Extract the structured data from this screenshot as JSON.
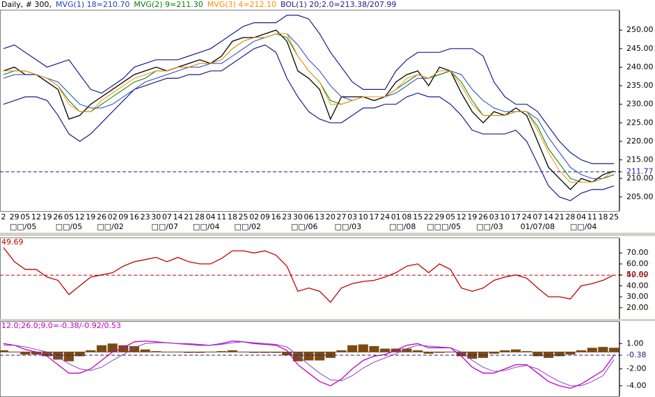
{
  "chart_data": [
    {
      "type": "line",
      "title": "Daily, # 300,",
      "categories": [
        "2",
        "29",
        "05",
        "12",
        "19",
        "26",
        "05",
        "12",
        "19",
        "26",
        "02",
        "09",
        "16",
        "23",
        "30",
        "07",
        "14",
        "21",
        "28",
        "04",
        "11",
        "18",
        "25",
        "02",
        "09",
        "16",
        "23",
        "30",
        "06",
        "13",
        "20",
        "27",
        "03",
        "10",
        "17",
        "24",
        "01",
        "08",
        "15",
        "22",
        "29",
        "05",
        "12",
        "19",
        "26",
        "03",
        "10",
        "17",
        "24",
        "07",
        "14",
        "21",
        "28",
        "04",
        "11",
        "18",
        "25"
      ],
      "month_labels": [
        {
          "value": 1.8,
          "label": "□□/05"
        },
        {
          "value": 6,
          "label": "□□/05"
        },
        {
          "value": 9.8,
          "label": "□□/02"
        },
        {
          "value": 14.8,
          "label": "□□/07"
        },
        {
          "value": 18.6,
          "label": "□□/04"
        },
        {
          "value": 22.4,
          "label": "□□/02"
        },
        {
          "value": 27.6,
          "label": "□□/06"
        },
        {
          "value": 31.6,
          "label": "□□/03"
        },
        {
          "value": 36.6,
          "label": "□□/08"
        },
        {
          "value": 40.4,
          "label": "□□□/05"
        },
        {
          "value": 44.6,
          "label": "□□/03"
        },
        {
          "value": 49,
          "label": "01/07/08"
        },
        {
          "value": 53.2,
          "label": "□□/04"
        }
      ],
      "xlim": [
        -0.32,
        56.51
      ],
      "ylim": [
        201.2,
        255.3
      ],
      "yticks": [
        {
          "value": 205,
          "label": "205.00"
        },
        {
          "value": 210,
          "label": "210.00"
        },
        {
          "value": 215,
          "label": "215.00"
        },
        {
          "value": 220,
          "label": "220.00"
        },
        {
          "value": 225,
          "label": "225.00"
        },
        {
          "value": 230,
          "label": "230.00"
        },
        {
          "value": 235,
          "label": "235.00"
        },
        {
          "value": 240,
          "label": "240.00"
        },
        {
          "value": 245,
          "label": "245.00"
        },
        {
          "value": 250,
          "label": "250.00"
        }
      ],
      "reference": 211.77,
      "reference_color": "#1a1a8c",
      "series": [
        {
          "color": "#000000",
          "values": [
            239,
            240,
            238,
            238,
            236,
            234,
            226,
            227,
            230,
            232,
            234,
            236,
            238,
            239,
            240,
            239,
            240,
            241,
            242,
            241,
            243,
            247,
            248,
            248,
            249,
            250,
            247,
            239,
            237,
            234,
            226,
            232,
            232,
            232,
            231,
            232,
            236,
            238,
            239,
            235,
            240,
            239,
            233,
            228,
            225,
            228,
            227,
            229,
            227,
            220,
            213,
            210,
            207,
            210,
            209,
            211,
            212
          ]
        },
        {
          "name": "MVG(1) 18=210.70",
          "color": "#2040c0",
          "values": [
            237,
            238,
            238,
            238,
            237,
            236,
            233,
            230,
            229,
            229,
            230,
            232,
            234,
            236,
            237,
            238,
            239,
            240,
            240,
            241,
            241,
            243,
            245,
            247,
            248,
            249,
            249,
            246,
            242,
            239,
            235,
            232,
            231,
            232,
            232,
            232,
            233,
            235,
            237,
            237,
            238,
            239,
            238,
            234,
            231,
            229,
            228,
            228,
            228,
            226,
            221,
            217,
            213,
            211,
            210,
            210,
            211
          ]
        },
        {
          "name": "MVG(2) 9=211.30",
          "color": "#008000",
          "values": [
            238,
            239,
            239,
            238,
            237,
            235,
            231,
            228,
            228,
            230,
            232,
            234,
            236,
            237,
            239,
            239,
            240,
            240,
            241,
            241,
            242,
            245,
            247,
            248,
            248,
            249,
            248,
            243,
            239,
            236,
            231,
            230,
            231,
            232,
            232,
            232,
            234,
            236,
            238,
            237,
            238,
            239,
            236,
            231,
            227,
            227,
            227,
            228,
            228,
            224,
            218,
            214,
            210,
            209,
            209,
            210,
            211
          ]
        },
        {
          "name": "MVG(3) 4=212.10",
          "color": "#ff8c00",
          "values": [
            239,
            239,
            239,
            238,
            237,
            235,
            230,
            228,
            228,
            231,
            233,
            235,
            237,
            238,
            239,
            239,
            240,
            240,
            241,
            241,
            242,
            245,
            247,
            248,
            248,
            249,
            249,
            243,
            239,
            236,
            230,
            230,
            231,
            232,
            232,
            232,
            234,
            237,
            238,
            237,
            239,
            239,
            235,
            230,
            227,
            227,
            227,
            228,
            228,
            223,
            217,
            212,
            209,
            209,
            209,
            210,
            212
          ]
        }
      ],
      "bands": {
        "name": "BOL(1) 20;2.0=213.38/207.99",
        "color": "#1a1a8c",
        "upper": [
          245,
          246,
          244,
          242,
          240,
          241,
          242,
          238,
          234,
          233,
          235,
          237,
          240,
          241,
          242,
          242,
          242,
          243,
          244,
          245,
          247,
          249,
          251,
          252,
          252,
          252,
          254,
          254,
          253,
          249,
          244,
          240,
          236,
          234,
          234,
          234,
          239,
          242,
          244,
          244,
          244,
          245,
          245,
          245,
          243,
          236,
          232,
          230,
          230,
          228,
          224,
          220,
          217,
          215,
          214,
          214,
          214
        ],
        "lower": [
          230,
          231,
          232,
          232,
          231,
          227,
          222,
          220,
          222,
          225,
          228,
          231,
          234,
          235,
          236,
          237,
          237,
          238,
          238,
          239,
          239,
          241,
          243,
          245,
          246,
          244,
          237,
          232,
          228,
          226,
          225,
          225,
          227,
          229,
          229,
          230,
          230,
          232,
          233,
          232,
          232,
          230,
          227,
          223,
          222,
          222,
          222,
          223,
          220,
          214,
          208,
          205,
          204,
          206,
          207,
          207,
          208
        ]
      }
    },
    {
      "type": "line",
      "title": "49.69",
      "title_color": "#c00000",
      "xlim": [
        -0.32,
        56.51
      ],
      "ylim": [
        9.7,
        83.5
      ],
      "yticks": [
        {
          "value": 20,
          "label": "20.00"
        },
        {
          "value": 30,
          "label": "30.00"
        },
        {
          "value": 40,
          "label": "40.00"
        },
        {
          "value": 50,
          "label": "50.00"
        },
        {
          "value": 60,
          "label": "60.00"
        },
        {
          "value": 70,
          "label": "70.00"
        }
      ],
      "reference": 49.69,
      "reference_color": "#c00000",
      "series": [
        {
          "color": "#c00000",
          "values": [
            75,
            62,
            55,
            55,
            48,
            45,
            32,
            40,
            48,
            50,
            52,
            58,
            62,
            64,
            66,
            62,
            66,
            62,
            60,
            60,
            65,
            72,
            72,
            70,
            72,
            68,
            58,
            35,
            38,
            35,
            25,
            38,
            42,
            44,
            45,
            48,
            52,
            58,
            60,
            52,
            60,
            55,
            38,
            35,
            38,
            45,
            48,
            50,
            47,
            38,
            30,
            30,
            28,
            40,
            42,
            45,
            50
          ]
        }
      ]
    },
    {
      "type": "line",
      "title": "12.0;26.0;9.0=-0.38/-0.92/0.53",
      "title_color": "#c000c0",
      "xlim": [
        -0.32,
        56.51
      ],
      "ylim": [
        -5.25,
        3.58
      ],
      "yticks": [
        {
          "value": 1,
          "label": "1.00"
        },
        {
          "value": -2,
          "label": "-2.00"
        },
        {
          "value": -4,
          "label": "-4.00"
        }
      ],
      "reference": -0.38,
      "reference_color": "#1a1a8c",
      "histogram": {
        "color": "#7b4a12",
        "values": [
          0.2,
          0,
          -0.3,
          -0.3,
          -0.5,
          -0.9,
          -1.1,
          -0.5,
          0.2,
          0.8,
          1.0,
          0.8,
          0.7,
          0.3,
          0.1,
          0,
          0,
          -0.1,
          -0.1,
          0,
          0.1,
          0.2,
          0,
          -0.1,
          -0.1,
          -0.1,
          -0.4,
          -1.1,
          -1.0,
          -1.0,
          -0.7,
          0.2,
          0.8,
          0.9,
          0.7,
          0.4,
          0.4,
          0.4,
          0.2,
          -0.2,
          -0.1,
          0,
          -0.5,
          -0.8,
          -0.7,
          -0.2,
          0.2,
          0.3,
          0.1,
          -0.5,
          -0.7,
          -0.5,
          -0.3,
          0.2,
          0.5,
          0.6,
          0.5
        ]
      },
      "series": [
        {
          "color": "#c000c0",
          "values": [
            1.0,
            0.8,
            0.3,
            0,
            -0.5,
            -1.5,
            -2.5,
            -2.5,
            -2,
            -1,
            0,
            0.5,
            1.2,
            1.3,
            1.2,
            1.1,
            1,
            0.9,
            0.8,
            0.8,
            1.0,
            1.3,
            1.2,
            1.0,
            0.9,
            0.8,
            0.2,
            -1.5,
            -2.5,
            -3.5,
            -4.0,
            -3.2,
            -2,
            -1,
            -0.5,
            -0.3,
            0.2,
            0.8,
            1.0,
            0.5,
            0.5,
            0.5,
            -0.5,
            -1.8,
            -2.5,
            -2.5,
            -2,
            -1.5,
            -1.5,
            -2.5,
            -3.5,
            -4,
            -4.3,
            -3.8,
            -3,
            -2.2,
            -0.4
          ]
        },
        {
          "color": "#8a3fd0",
          "values": [
            0.8,
            0.8,
            0.6,
            0.3,
            0,
            -0.6,
            -1.4,
            -2.0,
            -2.2,
            -1.8,
            -1,
            -0.3,
            0.5,
            1,
            1.1,
            1.1,
            1,
            1,
            0.9,
            0.8,
            0.9,
            1.1,
            1.2,
            1.1,
            1,
            0.9,
            0.6,
            -0.4,
            -1.5,
            -2.5,
            -3.3,
            -3.4,
            -2.8,
            -1.9,
            -1.2,
            -0.7,
            -0.2,
            0.4,
            0.8,
            0.7,
            0.6,
            0.5,
            0,
            -1,
            -1.8,
            -2.3,
            -2.2,
            -1.8,
            -1.6,
            -2,
            -2.8,
            -3.5,
            -4,
            -4,
            -3.5,
            -2.8,
            -0.9
          ]
        }
      ]
    }
  ]
}
